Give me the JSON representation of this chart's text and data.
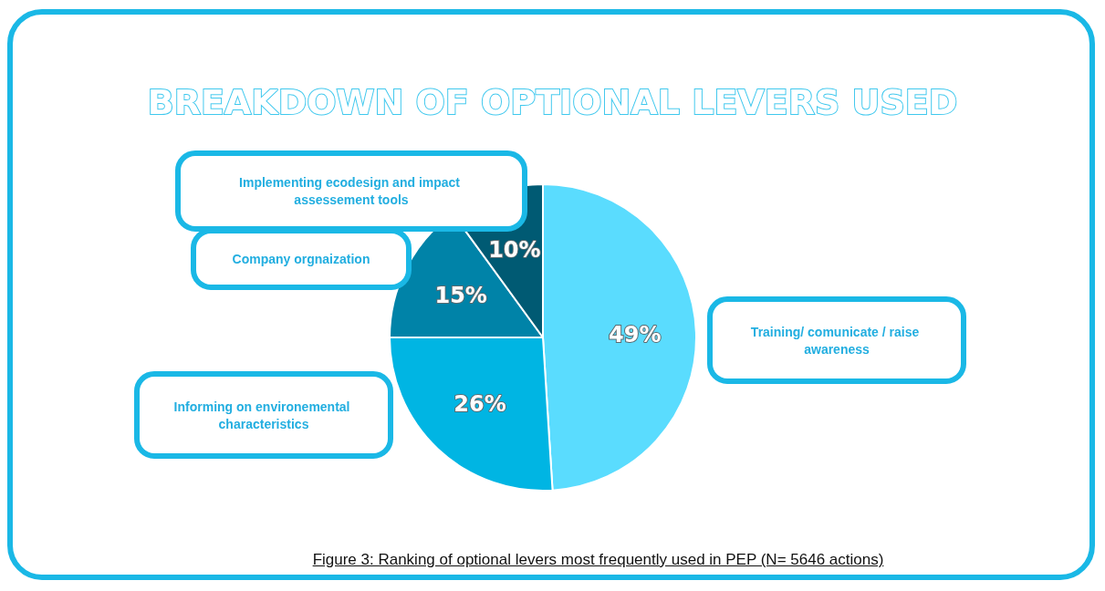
{
  "chart_data": {
    "type": "pie",
    "title": "BREAKDOWN OF OPTIONAL LEVERS USED",
    "categories": [
      "Training/ comunicate / raise awareness",
      "Informing on environemental characteristics",
      "Company orgnaization",
      "Implementing ecodesign and impact assessement tools"
    ],
    "values": [
      49,
      26,
      15,
      10
    ],
    "colors": [
      "#5adcfe",
      "#00b5e3",
      "#0083a8",
      "#005a73"
    ],
    "value_labels": [
      "49%",
      "26%",
      "15%",
      "10%"
    ],
    "annotations": [
      "Figure 3: Ranking of optional levers most frequently used in PEP (N= 5646 actions)"
    ]
  }
}
